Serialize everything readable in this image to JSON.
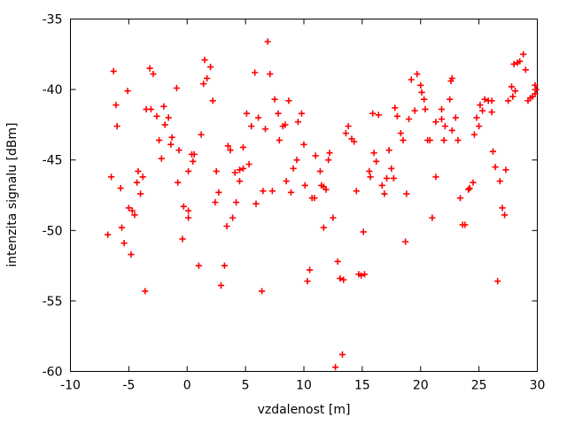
{
  "chart_data": {
    "type": "scatter",
    "title": "",
    "xlabel": "vzdalenost [m]",
    "ylabel": "intenzita signalu [dBm]",
    "xlim": [
      -10,
      30
    ],
    "ylim": [
      -60,
      -35
    ],
    "xticks": [
      -10,
      -5,
      0,
      5,
      10,
      15,
      20,
      25,
      30
    ],
    "yticks": [
      -60,
      -55,
      -50,
      -45,
      -40,
      -35
    ],
    "grid": false,
    "legend": "none",
    "marker": "plus",
    "marker_color": "#ff0000",
    "axis_color": "#000000",
    "text_color": "#000000",
    "background": "#ffffff",
    "points": [
      [
        -6.3,
        -38.7
      ],
      [
        -5.1,
        -40.1
      ],
      [
        -6.1,
        -41.1
      ],
      [
        -6.0,
        -42.6
      ],
      [
        -3.2,
        -38.5
      ],
      [
        -2.9,
        -38.9
      ],
      [
        -3.5,
        -41.4
      ],
      [
        -3.1,
        -41.4
      ],
      [
        -2.6,
        -41.9
      ],
      [
        -2.0,
        -41.2
      ],
      [
        -1.6,
        -42.0
      ],
      [
        -1.9,
        -42.5
      ],
      [
        -0.9,
        -39.9
      ],
      [
        1.5,
        -37.9
      ],
      [
        2.0,
        -38.4
      ],
      [
        1.7,
        -39.2
      ],
      [
        1.4,
        -39.6
      ],
      [
        2.2,
        -40.8
      ],
      [
        6.9,
        -36.6
      ],
      [
        5.8,
        -38.8
      ],
      [
        7.1,
        -38.9
      ],
      [
        7.5,
        -40.7
      ],
      [
        8.7,
        -40.8
      ],
      [
        5.1,
        -41.7
      ],
      [
        6.1,
        -42.0
      ],
      [
        7.8,
        -41.7
      ],
      [
        9.8,
        -41.7
      ],
      [
        5.5,
        -42.6
      ],
      [
        6.7,
        -42.8
      ],
      [
        8.2,
        -42.6
      ],
      [
        8.4,
        -42.5
      ],
      [
        9.5,
        -42.3
      ],
      [
        13.8,
        -42.6
      ],
      [
        15.9,
        -41.7
      ],
      [
        16.4,
        -41.8
      ],
      [
        28.8,
        -37.5
      ],
      [
        28.5,
        -38.0
      ],
      [
        28.3,
        -38.1
      ],
      [
        28.0,
        -38.2
      ],
      [
        29.0,
        -38.6
      ],
      [
        19.2,
        -39.3
      ],
      [
        19.7,
        -38.9
      ],
      [
        20.0,
        -39.7
      ],
      [
        20.1,
        -40.2
      ],
      [
        22.7,
        -39.2
      ],
      [
        22.6,
        -39.4
      ],
      [
        20.3,
        -40.7
      ],
      [
        20.4,
        -41.4
      ],
      [
        19.5,
        -41.5
      ],
      [
        17.8,
        -41.3
      ],
      [
        18.0,
        -41.9
      ],
      [
        19.0,
        -42.1
      ],
      [
        22.5,
        -40.7
      ],
      [
        21.8,
        -41.4
      ],
      [
        21.3,
        -42.3
      ],
      [
        21.8,
        -42.1
      ],
      [
        22.1,
        -42.6
      ],
      [
        23.0,
        -42.0
      ],
      [
        22.7,
        -42.9
      ],
      [
        25.1,
        -41.1
      ],
      [
        25.5,
        -40.7
      ],
      [
        25.8,
        -40.8
      ],
      [
        26.1,
        -40.8
      ],
      [
        25.3,
        -41.5
      ],
      [
        26.1,
        -41.6
      ],
      [
        24.8,
        -42.0
      ],
      [
        25.0,
        -42.6
      ],
      [
        27.8,
        -39.8
      ],
      [
        28.1,
        -40.1
      ],
      [
        27.9,
        -40.5
      ],
      [
        27.5,
        -40.8
      ],
      [
        29.8,
        -39.7
      ],
      [
        29.9,
        -40.0
      ],
      [
        29.8,
        -40.3
      ],
      [
        29.6,
        -40.5
      ],
      [
        29.4,
        -40.6
      ],
      [
        29.2,
        -40.8
      ],
      [
        -2.4,
        -43.6
      ],
      [
        -1.3,
        -43.4
      ],
      [
        -1.4,
        -43.9
      ],
      [
        -0.7,
        -44.3
      ],
      [
        1.2,
        -43.2
      ],
      [
        0.4,
        -44.6
      ],
      [
        0.6,
        -44.6
      ],
      [
        0.5,
        -45.1
      ],
      [
        -2.2,
        -44.9
      ],
      [
        -4.2,
        -45.8
      ],
      [
        -3.8,
        -46.2
      ],
      [
        -6.5,
        -46.2
      ],
      [
        -4.3,
        -46.6
      ],
      [
        -5.7,
        -47.0
      ],
      [
        -4.0,
        -47.4
      ],
      [
        0.1,
        -45.8
      ],
      [
        2.5,
        -45.8
      ],
      [
        -0.8,
        -46.6
      ],
      [
        2.7,
        -47.3
      ],
      [
        2.4,
        -48.0
      ],
      [
        -0.3,
        -48.3
      ],
      [
        0.1,
        -48.6
      ],
      [
        -5.0,
        -48.4
      ],
      [
        -4.7,
        -48.6
      ],
      [
        -4.5,
        -48.9
      ],
      [
        0.1,
        -49.1
      ],
      [
        -5.6,
        -49.8
      ],
      [
        -6.8,
        -50.3
      ],
      [
        -0.4,
        -50.6
      ],
      [
        -5.4,
        -50.9
      ],
      [
        3.5,
        -44.0
      ],
      [
        3.7,
        -44.3
      ],
      [
        4.8,
        -44.1
      ],
      [
        7.9,
        -43.6
      ],
      [
        10.0,
        -43.9
      ],
      [
        9.4,
        -45.0
      ],
      [
        9.1,
        -45.6
      ],
      [
        11.0,
        -44.7
      ],
      [
        12.2,
        -44.5
      ],
      [
        12.1,
        -45.0
      ],
      [
        11.4,
        -45.8
      ],
      [
        13.6,
        -43.1
      ],
      [
        14.1,
        -43.5
      ],
      [
        14.3,
        -43.7
      ],
      [
        5.3,
        -45.3
      ],
      [
        4.1,
        -45.9
      ],
      [
        4.5,
        -45.7
      ],
      [
        4.8,
        -45.6
      ],
      [
        4.5,
        -46.5
      ],
      [
        8.5,
        -46.5
      ],
      [
        10.1,
        -46.8
      ],
      [
        6.5,
        -47.2
      ],
      [
        7.3,
        -47.2
      ],
      [
        8.9,
        -47.3
      ],
      [
        11.5,
        -46.8
      ],
      [
        11.7,
        -46.9
      ],
      [
        11.9,
        -47.1
      ],
      [
        10.7,
        -47.7
      ],
      [
        10.9,
        -47.7
      ],
      [
        5.9,
        -48.1
      ],
      [
        4.2,
        -48.0
      ],
      [
        3.9,
        -49.1
      ],
      [
        3.4,
        -49.7
      ],
      [
        12.5,
        -49.1
      ],
      [
        11.7,
        -49.8
      ],
      [
        14.5,
        -47.2
      ],
      [
        15.1,
        -50.1
      ],
      [
        15.6,
        -45.8
      ],
      [
        15.7,
        -46.2
      ],
      [
        16.0,
        -44.5
      ],
      [
        16.2,
        -45.1
      ],
      [
        16.7,
        -46.8
      ],
      [
        16.9,
        -47.4
      ],
      [
        18.3,
        -43.1
      ],
      [
        18.5,
        -43.6
      ],
      [
        20.6,
        -43.6
      ],
      [
        20.8,
        -43.6
      ],
      [
        22.0,
        -43.6
      ],
      [
        23.2,
        -43.6
      ],
      [
        24.6,
        -43.2
      ],
      [
        17.3,
        -44.3
      ],
      [
        26.2,
        -44.4
      ],
      [
        26.4,
        -45.5
      ],
      [
        27.3,
        -45.7
      ],
      [
        26.8,
        -46.5
      ],
      [
        17.5,
        -45.6
      ],
      [
        17.1,
        -46.3
      ],
      [
        17.7,
        -46.3
      ],
      [
        18.8,
        -47.4
      ],
      [
        21.3,
        -46.2
      ],
      [
        24.5,
        -46.6
      ],
      [
        24.1,
        -47.1
      ],
      [
        24.2,
        -47.0
      ],
      [
        23.4,
        -47.7
      ],
      [
        27.0,
        -48.4
      ],
      [
        27.2,
        -48.9
      ],
      [
        21.0,
        -49.1
      ],
      [
        23.6,
        -49.6
      ],
      [
        23.8,
        -49.6
      ],
      [
        18.7,
        -50.8
      ],
      [
        -4.8,
        -51.7
      ],
      [
        1.0,
        -52.5
      ],
      [
        3.2,
        -52.5
      ],
      [
        -3.6,
        -54.3
      ],
      [
        2.9,
        -53.9
      ],
      [
        6.4,
        -54.3
      ],
      [
        10.5,
        -52.8
      ],
      [
        10.3,
        -53.6
      ],
      [
        12.9,
        -52.2
      ],
      [
        13.1,
        -53.4
      ],
      [
        13.4,
        -53.5
      ],
      [
        14.7,
        -53.1
      ],
      [
        14.9,
        -53.2
      ],
      [
        15.2,
        -53.1
      ],
      [
        13.3,
        -58.8
      ],
      [
        12.7,
        -59.7
      ],
      [
        26.6,
        -53.6
      ]
    ]
  }
}
